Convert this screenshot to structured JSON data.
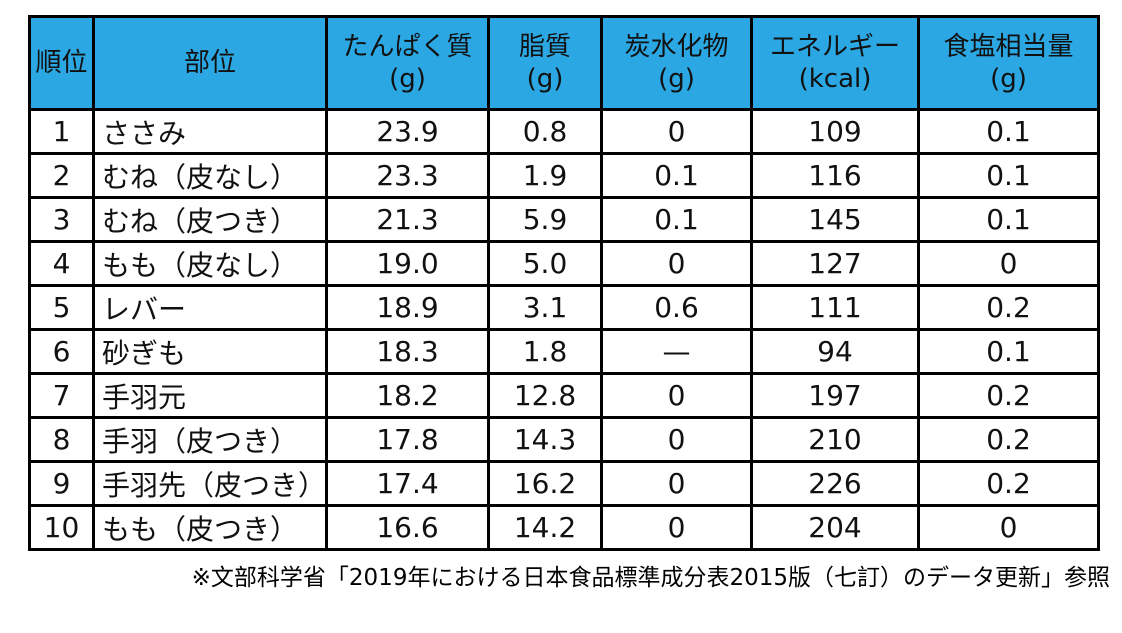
{
  "table": {
    "header": {
      "bg_color": "#2BA7E3",
      "columns": [
        {
          "label": "順位",
          "unit": ""
        },
        {
          "label": "部位",
          "unit": ""
        },
        {
          "label": "たんぱく質",
          "unit": "(g)"
        },
        {
          "label": "脂質",
          "unit": "(g)"
        },
        {
          "label": "炭水化物",
          "unit": "(g)"
        },
        {
          "label": "エネルギー",
          "unit": "(kcal)"
        },
        {
          "label": "食塩相当量",
          "unit": "(g)"
        }
      ]
    },
    "rows": [
      {
        "rank": "1",
        "part": "ささみ",
        "protein": "23.9",
        "fat": "0.8",
        "carb": "0",
        "energy": "109",
        "salt": "0.1"
      },
      {
        "rank": "2",
        "part": "むね（皮なし）",
        "protein": "23.3",
        "fat": "1.9",
        "carb": "0.1",
        "energy": "116",
        "salt": "0.1"
      },
      {
        "rank": "3",
        "part": "むね（皮つき）",
        "protein": "21.3",
        "fat": "5.9",
        "carb": "0.1",
        "energy": "145",
        "salt": "0.1"
      },
      {
        "rank": "4",
        "part": "もも（皮なし）",
        "protein": "19.0",
        "fat": "5.0",
        "carb": "0",
        "energy": "127",
        "salt": "0"
      },
      {
        "rank": "5",
        "part": "レバー",
        "protein": "18.9",
        "fat": "3.1",
        "carb": "0.6",
        "energy": "111",
        "salt": "0.2"
      },
      {
        "rank": "6",
        "part": "砂ぎも",
        "protein": "18.3",
        "fat": "1.8",
        "carb": "—",
        "energy": "94",
        "salt": "0.1"
      },
      {
        "rank": "7",
        "part": "手羽元",
        "protein": "18.2",
        "fat": "12.8",
        "carb": "0",
        "energy": "197",
        "salt": "0.2"
      },
      {
        "rank": "8",
        "part": "手羽（皮つき）",
        "protein": "17.8",
        "fat": "14.3",
        "carb": "0",
        "energy": "210",
        "salt": "0.2"
      },
      {
        "rank": "9",
        "part": "手羽先（皮つき）",
        "protein": "17.4",
        "fat": "16.2",
        "carb": "0",
        "energy": "226",
        "salt": "0.2"
      },
      {
        "rank": "10",
        "part": "もも（皮つき）",
        "protein": "16.6",
        "fat": "14.2",
        "carb": "0",
        "energy": "204",
        "salt": "0"
      }
    ]
  },
  "footnote": "※文部科学省「2019年における日本食品標準成分表2015版（七訂）のデータ更新」参照",
  "chart_data": {
    "type": "table",
    "title": "",
    "columns": [
      "順位",
      "部位",
      "たんぱく質(g)",
      "脂質(g)",
      "炭水化物(g)",
      "エネルギー(kcal)",
      "食塩相当量(g)"
    ],
    "rows": [
      [
        "1",
        "ささみ",
        "23.9",
        "0.8",
        "0",
        "109",
        "0.1"
      ],
      [
        "2",
        "むね（皮なし）",
        "23.3",
        "1.9",
        "0.1",
        "116",
        "0.1"
      ],
      [
        "3",
        "むね（皮つき）",
        "21.3",
        "5.9",
        "0.1",
        "145",
        "0.1"
      ],
      [
        "4",
        "もも（皮なし）",
        "19.0",
        "5.0",
        "0",
        "127",
        "0"
      ],
      [
        "5",
        "レバー",
        "18.9",
        "3.1",
        "0.6",
        "111",
        "0.2"
      ],
      [
        "6",
        "砂ぎも",
        "18.3",
        "1.8",
        "—",
        "94",
        "0.1"
      ],
      [
        "7",
        "手羽元",
        "18.2",
        "12.8",
        "0",
        "197",
        "0.2"
      ],
      [
        "8",
        "手羽（皮つき）",
        "17.8",
        "14.3",
        "0",
        "210",
        "0.2"
      ],
      [
        "9",
        "手羽先（皮つき）",
        "17.4",
        "16.2",
        "0",
        "226",
        "0.2"
      ],
      [
        "10",
        "もも（皮つき）",
        "16.6",
        "14.2",
        "0",
        "204",
        "0"
      ]
    ],
    "header_bg": "#2BA7E3",
    "grid": true,
    "legend_position": "none",
    "annotation": "※文部科学省「2019年における日本食品標準成分表2015版（七訂）のデータ更新」参照"
  }
}
